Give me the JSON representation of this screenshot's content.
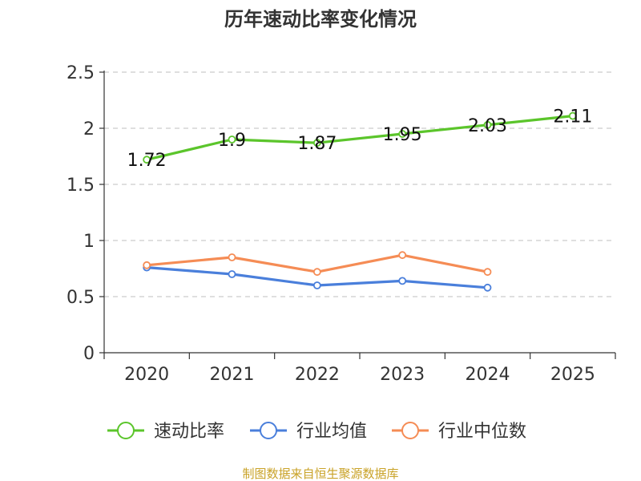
{
  "chart_data": {
    "type": "line",
    "title": "历年速动比率变化情况",
    "categories": [
      "2020",
      "2021",
      "2022",
      "2023",
      "2024",
      "2025"
    ],
    "ylim": [
      0,
      2.5
    ],
    "yticks": [
      "0",
      "0.5",
      "1",
      "1.5",
      "2",
      "2.5"
    ],
    "grid": true,
    "legend_position": "bottom",
    "series": [
      {
        "name": "速动比率",
        "color": "#5bc52b",
        "values": [
          1.72,
          1.9,
          1.87,
          1.95,
          2.03,
          2.11
        ],
        "labels": [
          "1.72",
          "1.9",
          "1.87",
          "1.95",
          "2.03",
          "2.11"
        ]
      },
      {
        "name": "行业均值",
        "color": "#4a7fdb",
        "values": [
          0.76,
          0.7,
          0.6,
          0.64,
          0.58,
          null
        ]
      },
      {
        "name": "行业中位数",
        "color": "#f58c55",
        "values": [
          0.78,
          0.85,
          0.72,
          0.87,
          0.72,
          null
        ]
      }
    ],
    "source": "制图数据来自恒生聚源数据库"
  }
}
